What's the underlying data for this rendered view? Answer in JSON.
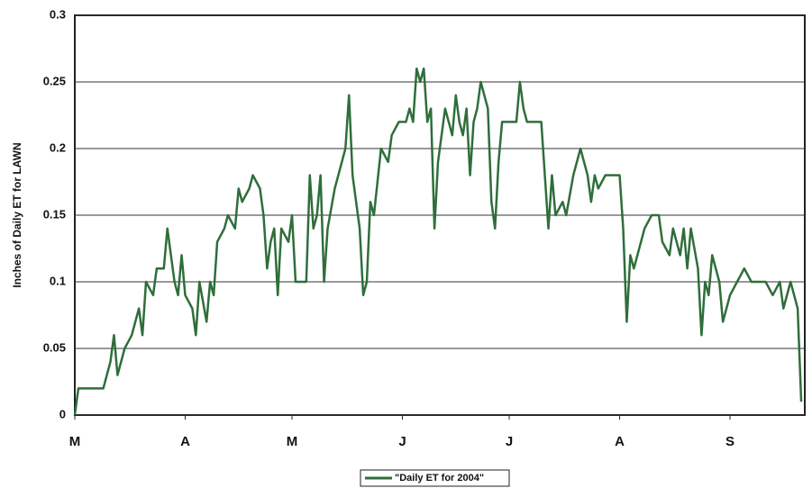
{
  "chart_data": {
    "type": "line",
    "y_label": "Inches of Daily ET for LAWN",
    "x": [
      0,
      1,
      7,
      8,
      10,
      11,
      12,
      14,
      16,
      18,
      19,
      20,
      22,
      23,
      25,
      26,
      28,
      29,
      30,
      31,
      33,
      34,
      35,
      37,
      38,
      39,
      40,
      42,
      43,
      45,
      46,
      47,
      49,
      50,
      52,
      53,
      54,
      55,
      56,
      57,
      58,
      60,
      61,
      62,
      64,
      65,
      66,
      67,
      68,
      69,
      70,
      71,
      73,
      75,
      76,
      77,
      78,
      80,
      81,
      82,
      83,
      84,
      86,
      88,
      89,
      91,
      93,
      94,
      95,
      96,
      97,
      98,
      99,
      100,
      101,
      102,
      103,
      104,
      106,
      107,
      108,
      109,
      110,
      111,
      112,
      113,
      114,
      116,
      117,
      118,
      119,
      120,
      122,
      124,
      125,
      126,
      127,
      128,
      131,
      132,
      133,
      134,
      135,
      137,
      138,
      140,
      142,
      144,
      145,
      146,
      147,
      149,
      151,
      153,
      154,
      155,
      156,
      157,
      158,
      160,
      162,
      164,
      165,
      167,
      168,
      170,
      171,
      172,
      173,
      175,
      176,
      177,
      178,
      179,
      181,
      182,
      184,
      186,
      188,
      190,
      192,
      194,
      196,
      198,
      199,
      201,
      203,
      204
    ],
    "series": [
      {
        "name": "\"Daily ET for 2004\"",
        "color": "#2f6e3b",
        "values": [
          0,
          0.02,
          0.02,
          0.02,
          0.04,
          0.06,
          0.03,
          0.05,
          0.06,
          0.08,
          0.06,
          0.1,
          0.09,
          0.11,
          0.11,
          0.14,
          0.1,
          0.09,
          0.12,
          0.09,
          0.08,
          0.06,
          0.1,
          0.07,
          0.1,
          0.09,
          0.13,
          0.14,
          0.15,
          0.14,
          0.17,
          0.16,
          0.17,
          0.18,
          0.17,
          0.15,
          0.11,
          0.13,
          0.14,
          0.09,
          0.14,
          0.13,
          0.15,
          0.1,
          0.1,
          0.1,
          0.18,
          0.14,
          0.15,
          0.18,
          0.1,
          0.14,
          0.17,
          0.19,
          0.2,
          0.24,
          0.18,
          0.14,
          0.09,
          0.1,
          0.16,
          0.15,
          0.2,
          0.19,
          0.21,
          0.22,
          0.22,
          0.23,
          0.22,
          0.26,
          0.25,
          0.26,
          0.22,
          0.23,
          0.14,
          0.19,
          0.21,
          0.23,
          0.21,
          0.24,
          0.22,
          0.21,
          0.23,
          0.18,
          0.22,
          0.23,
          0.25,
          0.23,
          0.16,
          0.14,
          0.19,
          0.22,
          0.22,
          0.22,
          0.25,
          0.23,
          0.22,
          0.22,
          0.22,
          0.18,
          0.14,
          0.18,
          0.15,
          0.16,
          0.15,
          0.18,
          0.2,
          0.18,
          0.16,
          0.18,
          0.17,
          0.18,
          0.18,
          0.18,
          0.14,
          0.07,
          0.12,
          0.11,
          0.12,
          0.14,
          0.15,
          0.15,
          0.13,
          0.12,
          0.14,
          0.12,
          0.14,
          0.11,
          0.14,
          0.11,
          0.06,
          0.1,
          0.09,
          0.12,
          0.1,
          0.07,
          0.09,
          0.1,
          0.11,
          0.1,
          0.1,
          0.1,
          0.09,
          0.1,
          0.08,
          0.1,
          0.08,
          0.01
        ]
      }
    ],
    "xlim": [
      0,
      205
    ],
    "xticks": [
      {
        "value": 0,
        "label": "M"
      },
      {
        "value": 31,
        "label": "A"
      },
      {
        "value": 61,
        "label": "M"
      },
      {
        "value": 92,
        "label": "J"
      },
      {
        "value": 122,
        "label": "J"
      },
      {
        "value": 153,
        "label": "A"
      },
      {
        "value": 184,
        "label": "S"
      }
    ],
    "ylim": [
      0,
      0.3
    ],
    "yticks": [
      0,
      0.05,
      0.1,
      0.15,
      0.2,
      0.25,
      0.3
    ],
    "grid": true,
    "legend": "bottom"
  }
}
